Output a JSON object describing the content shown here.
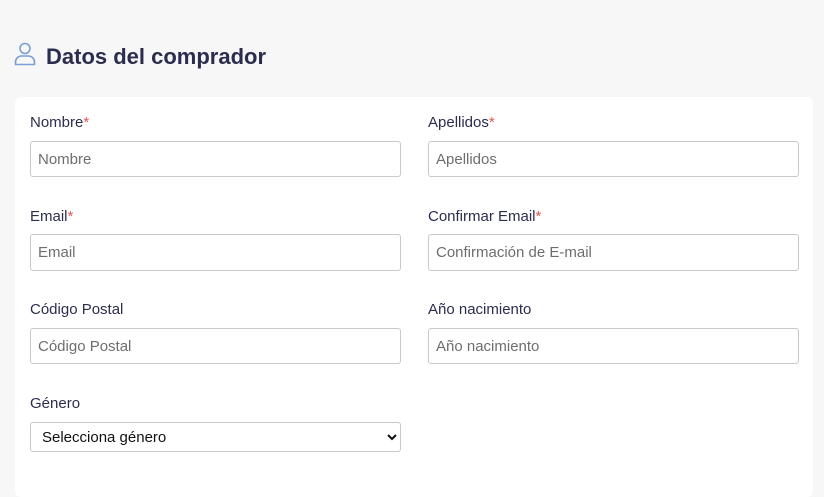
{
  "header": {
    "title": "Datos del comprador",
    "icon": "user-icon"
  },
  "colors": {
    "title": "#2b2d4e",
    "required": "#e5554f",
    "icon": "#7a9fd6",
    "background": "#f7f7f7"
  },
  "form": {
    "nombre": {
      "label": "Nombre",
      "required": "*",
      "placeholder": "Nombre"
    },
    "apellidos": {
      "label": "Apellidos",
      "required": "*",
      "placeholder": "Apellidos"
    },
    "email": {
      "label": "Email",
      "required": "*",
      "placeholder": "Email"
    },
    "confirm_email": {
      "label": "Confirmar Email",
      "required": "*",
      "placeholder": "Confirmación de E-mail"
    },
    "postal": {
      "label": "Código Postal",
      "placeholder": "Código Postal"
    },
    "birth_year": {
      "label": "Año nacimiento",
      "placeholder": "Año nacimiento"
    },
    "gender": {
      "label": "Género",
      "selected": "Selecciona género"
    }
  }
}
